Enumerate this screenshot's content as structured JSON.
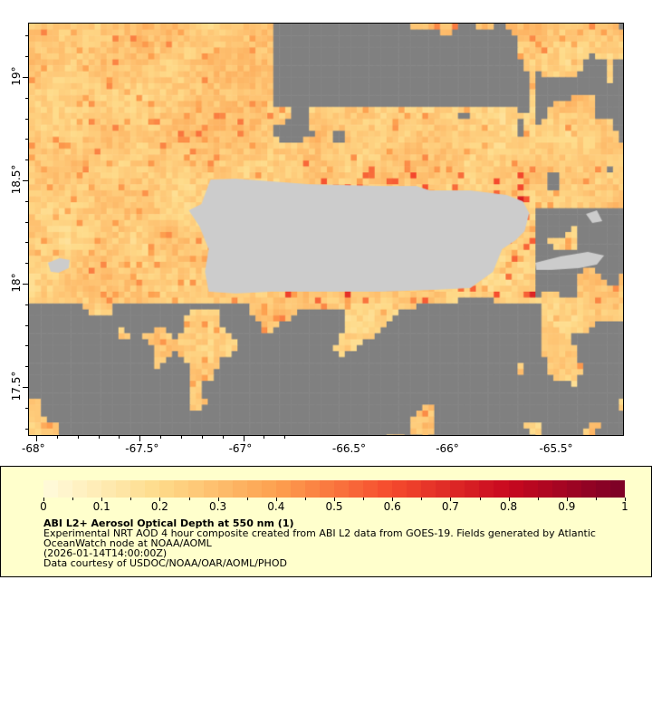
{
  "map": {
    "lon_ticks": [
      "-68°",
      "-67.5°",
      "-67°",
      "-66.5°",
      "-66°",
      "-65.5°"
    ],
    "lat_ticks": [
      "19°",
      "18.5°",
      "18°",
      "17.5°"
    ],
    "lon_range": [
      -68.04,
      -65.16
    ],
    "lat_range": [
      17.26,
      19.26
    ],
    "missing_color": "#808080",
    "land_color": "#cccccc"
  },
  "legend": {
    "scale_labels": [
      "0",
      "0.1",
      "0.2",
      "0.3",
      "0.4",
      "0.5",
      "0.6",
      "0.7",
      "0.8",
      "0.9",
      "1"
    ],
    "colormap_stops": [
      "#fffbdc",
      "#fedb8a",
      "#fda04f",
      "#f54a2d",
      "#c8081f",
      "#7a0026"
    ],
    "title": "ABI L2+ Aerosol Optical Depth at 550 nm (1)",
    "line1": "Experimental NRT AOD 4 hour composite created from ABI L2 data from GOES-19. Fields generated by Atlantic",
    "line2": "OceanWatch node at NOAA/AOML",
    "line3": "(2026-01-14T14:00:00Z)",
    "line4": "Data courtesy of USDOC/NOAA/OAR/AOML/PHOD"
  }
}
